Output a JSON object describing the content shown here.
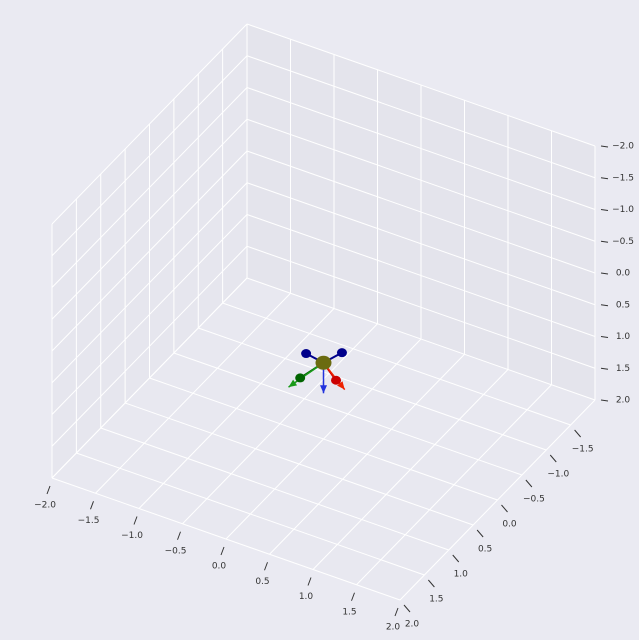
{
  "chart_data": {
    "type": "scatter3d",
    "xlim": [
      -2,
      2
    ],
    "ylim": [
      -2,
      2
    ],
    "zlim": [
      2,
      -2
    ],
    "xticks": [
      {
        "value": -2,
        "label": "−2.0"
      },
      {
        "value": -1.5,
        "label": "−1.5"
      },
      {
        "value": -1,
        "label": "−1.0"
      },
      {
        "value": -0.5,
        "label": "−0.5"
      },
      {
        "value": 0,
        "label": "0.0"
      },
      {
        "value": 0.5,
        "label": "0.5"
      },
      {
        "value": 1,
        "label": "1.0"
      },
      {
        "value": 1.5,
        "label": "1.5"
      },
      {
        "value": 2,
        "label": "2.0"
      }
    ],
    "yticks": [
      {
        "value": -1.5,
        "label": "−1.5"
      },
      {
        "value": -1,
        "label": "−1.0"
      },
      {
        "value": -0.5,
        "label": "−0.5"
      },
      {
        "value": 0,
        "label": "0.0"
      },
      {
        "value": 0.5,
        "label": "0.5"
      },
      {
        "value": 1,
        "label": "1.0"
      },
      {
        "value": 1.5,
        "label": "1.5"
      },
      {
        "value": 2,
        "label": "2.0"
      }
    ],
    "zticks": [
      {
        "value": -2,
        "label": "−2.0"
      },
      {
        "value": -1.5,
        "label": "−1.5"
      },
      {
        "value": -1,
        "label": "−1.0"
      },
      {
        "value": -0.5,
        "label": "−0.5"
      },
      {
        "value": 0,
        "label": "0.0"
      },
      {
        "value": 0.5,
        "label": "0.5"
      },
      {
        "value": 1,
        "label": "1.0"
      },
      {
        "value": 1.5,
        "label": "1.5"
      },
      {
        "value": 2,
        "label": "2.0"
      }
    ],
    "grid": true,
    "points": {
      "x": [
        0,
        -0.2,
        0.1,
        0.2,
        -0.1
      ],
      "y": [
        0,
        0,
        -0.2,
        0.1,
        0.3
      ],
      "z": [
        0.8,
        0.75,
        0.75,
        0.9,
        0.85
      ],
      "colors": [
        "#6b6b10",
        "#00008b",
        "#00008b",
        "#cc0000",
        "#006400"
      ]
    },
    "arrows": {
      "x": [
        -0.15,
        0.3,
        0.0
      ],
      "y": [
        0.45,
        0.1,
        0.0
      ],
      "z": [
        0.9,
        1.0,
        1.28
      ],
      "colors": [
        "#1a9a1a",
        "#ee2200",
        "#2233dd"
      ]
    }
  }
}
